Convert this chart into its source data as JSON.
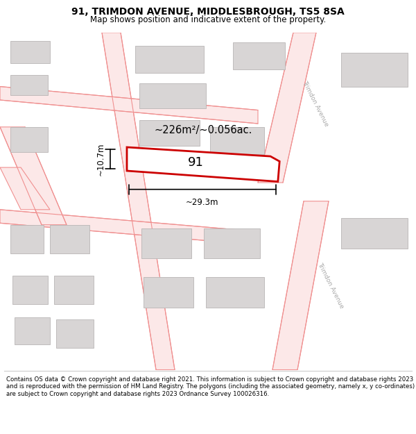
{
  "title": "91, TRIMDON AVENUE, MIDDLESBROUGH, TS5 8SA",
  "subtitle": "Map shows position and indicative extent of the property.",
  "footer": "Contains OS data © Crown copyright and database right 2021. This information is subject to Crown copyright and database rights 2023 and is reproduced with the permission of HM Land Registry. The polygons (including the associated geometry, namely x, y co-ordinates) are subject to Crown copyright and database rights 2023 Ordnance Survey 100026316.",
  "bg_color": "#ffffff",
  "map_bg": "#ffffff",
  "area_label": "~226m²/~0.056ac.",
  "plot_number": "91",
  "dim_width": "~29.3m",
  "dim_height": "~10.7m",
  "road_label_1": "Trimdon Avenue",
  "road_label_2": "Trimdon Avenue",
  "road_line_color": "#f09090",
  "road_fill_color": "#fce8e8",
  "building_color": "#d8d5d5",
  "building_edge": "#b8b5b5",
  "plot_edge_color": "#cc0000",
  "plot_fill": "#ffffff",
  "dim_line_color": "#000000",
  "footer_line_color": "#cccccc",
  "title_fontsize": 10,
  "subtitle_fontsize": 8.5,
  "footer_fontsize": 6.2
}
